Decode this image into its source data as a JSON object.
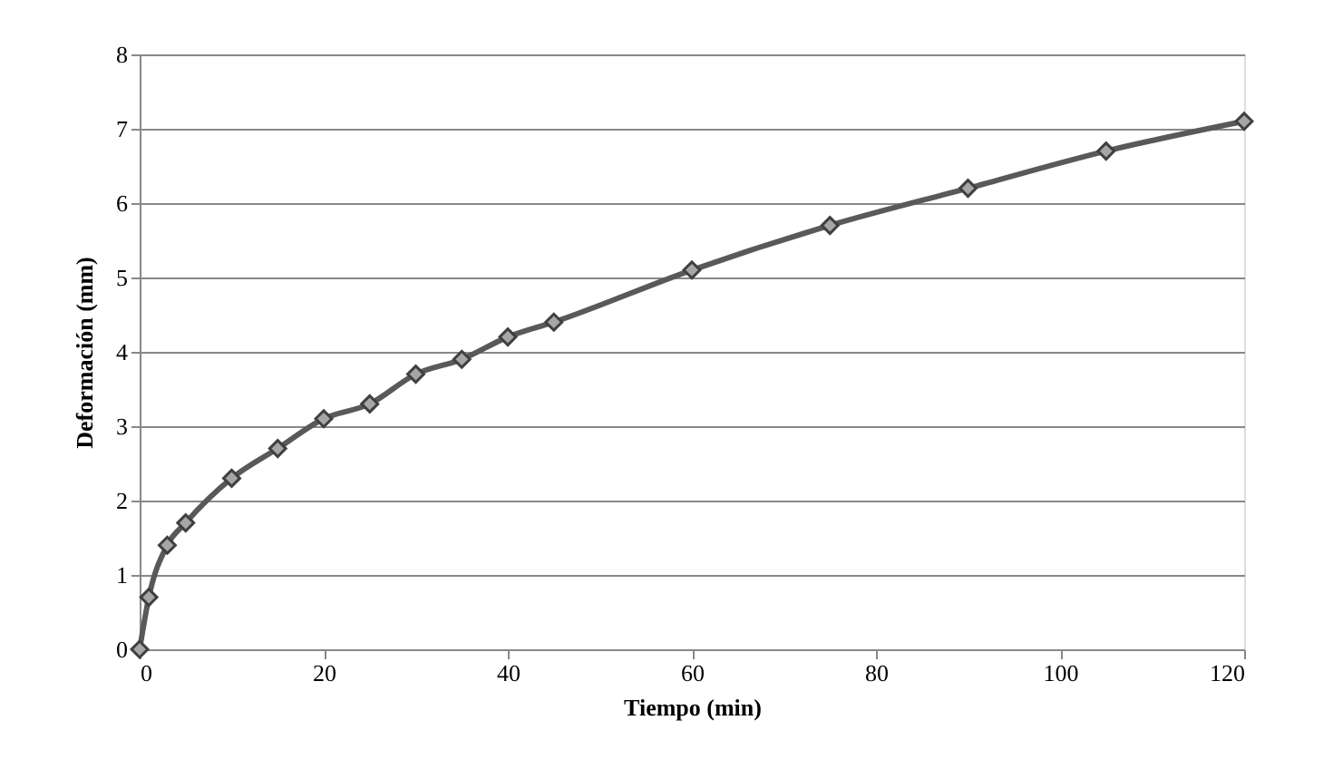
{
  "chart_data": {
    "type": "line",
    "xlabel": "Tiempo (min)",
    "ylabel": "Deformación (mm)",
    "x": [
      0,
      1,
      3,
      5,
      10,
      15,
      20,
      25,
      30,
      35,
      40,
      45,
      60,
      75,
      90,
      105,
      120
    ],
    "series": [
      {
        "color": "#595959",
        "values": [
          0,
          0.7,
          1.4,
          1.7,
          2.3,
          2.7,
          3.1,
          3.3,
          3.7,
          3.9,
          4.2,
          4.4,
          5.1,
          5.7,
          6.2,
          6.7,
          7.1
        ]
      }
    ],
    "xlim": [
      0,
      120
    ],
    "xticks": [
      0,
      20,
      40,
      60,
      80,
      100,
      120
    ],
    "ylim": [
      0,
      8
    ],
    "yticks": [
      0,
      1,
      2,
      3,
      4,
      5,
      6,
      7,
      8
    ],
    "grid": "y",
    "marker": "diamond",
    "line_style": "solid",
    "legend": false
  }
}
